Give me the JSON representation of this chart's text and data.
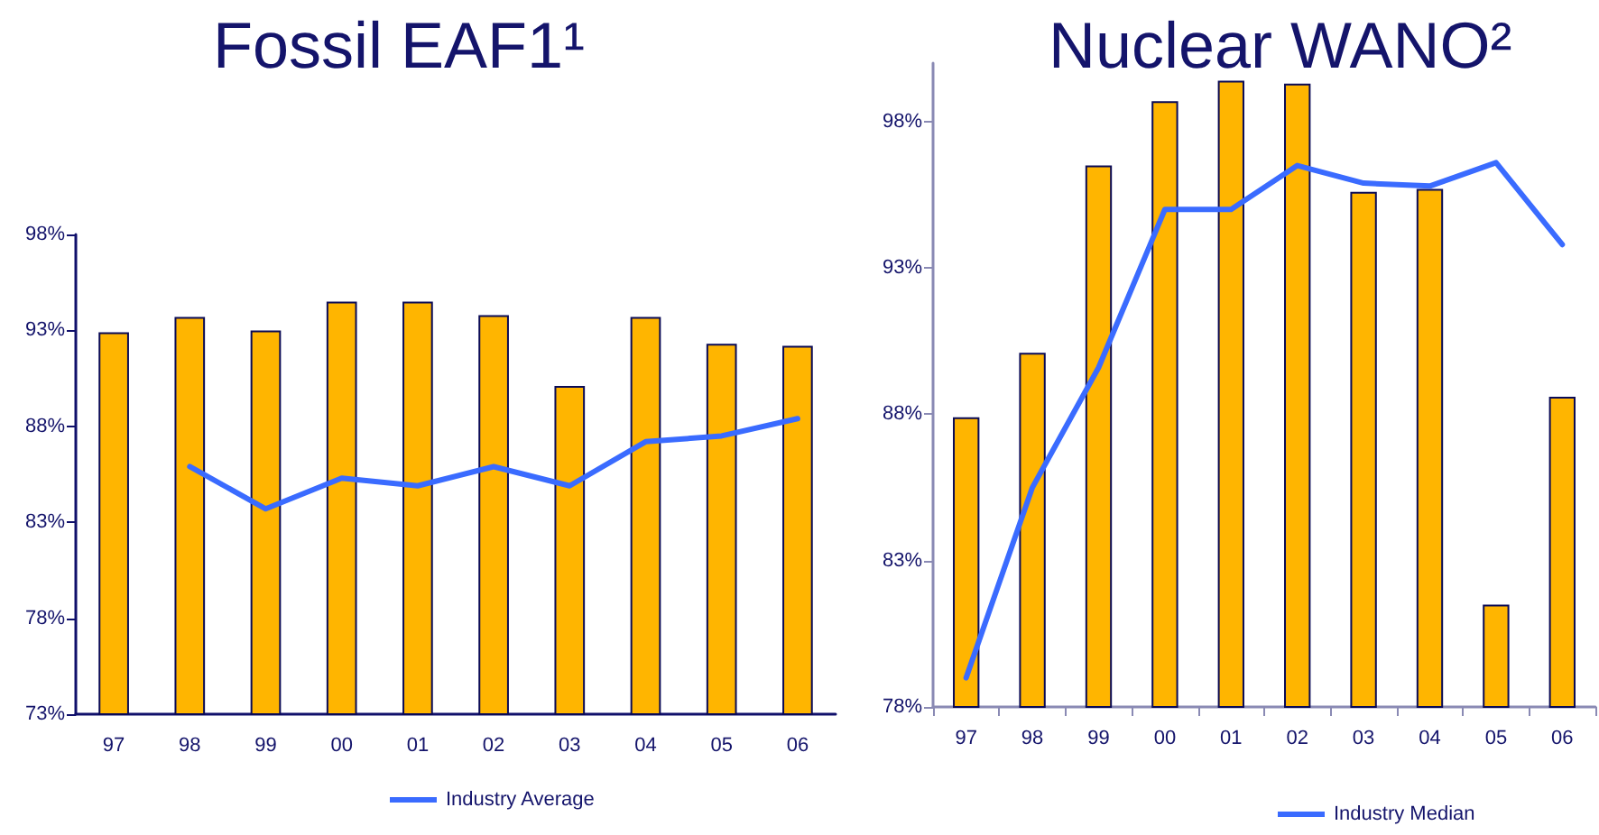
{
  "chart_data": [
    {
      "type": "bar",
      "title": "Fossil EAF1¹",
      "categories": [
        "97",
        "98",
        "99",
        "00",
        "01",
        "02",
        "03",
        "04",
        "05",
        "06"
      ],
      "series": [
        {
          "color": "#ffb500",
          "values": [
            92.9,
            93.7,
            93.0,
            94.5,
            94.5,
            93.8,
            90.1,
            93.7,
            92.3,
            92.2
          ]
        },
        {
          "type": "line",
          "name": "Industry Average",
          "color": "#3a6bff",
          "values": [
            null,
            85.9,
            83.7,
            85.3,
            84.9,
            85.9,
            84.9,
            87.2,
            87.5,
            88.4
          ]
        }
      ],
      "ylim": [
        73,
        98
      ],
      "yticks": [
        {
          "value": 73,
          "label": "73%"
        },
        {
          "value": 78,
          "label": "78%"
        },
        {
          "value": 83,
          "label": "83%"
        },
        {
          "value": 88,
          "label": "88%"
        },
        {
          "value": 93,
          "label": "93%"
        },
        {
          "value": 98,
          "label": "98%"
        }
      ],
      "grid": false,
      "legend": "bottom",
      "marker": "none"
    },
    {
      "type": "bar",
      "title": "Nuclear WANO²",
      "categories": [
        "97",
        "98",
        "99",
        "00",
        "01",
        "02",
        "03",
        "04",
        "05",
        "06"
      ],
      "series": [
        {
          "color": "#ffb500",
          "values": [
            87.9,
            90.1,
            96.5,
            98.7,
            99.4,
            99.3,
            95.6,
            95.7,
            81.5,
            88.6
          ]
        },
        {
          "type": "line",
          "name": "Industry Median",
          "color": "#3a6bff",
          "values": [
            79.0,
            85.5,
            89.6,
            95.0,
            95.0,
            96.5,
            95.9,
            95.8,
            96.6,
            93.8
          ]
        }
      ],
      "ylim": [
        78,
        100
      ],
      "yticks": [
        {
          "value": 78,
          "label": "78%"
        },
        {
          "value": 83,
          "label": "83%"
        },
        {
          "value": 88,
          "label": "88%"
        },
        {
          "value": 93,
          "label": "93%"
        },
        {
          "value": 98,
          "label": "98%"
        }
      ],
      "grid": false,
      "legend": "bottom",
      "marker": "none"
    }
  ]
}
